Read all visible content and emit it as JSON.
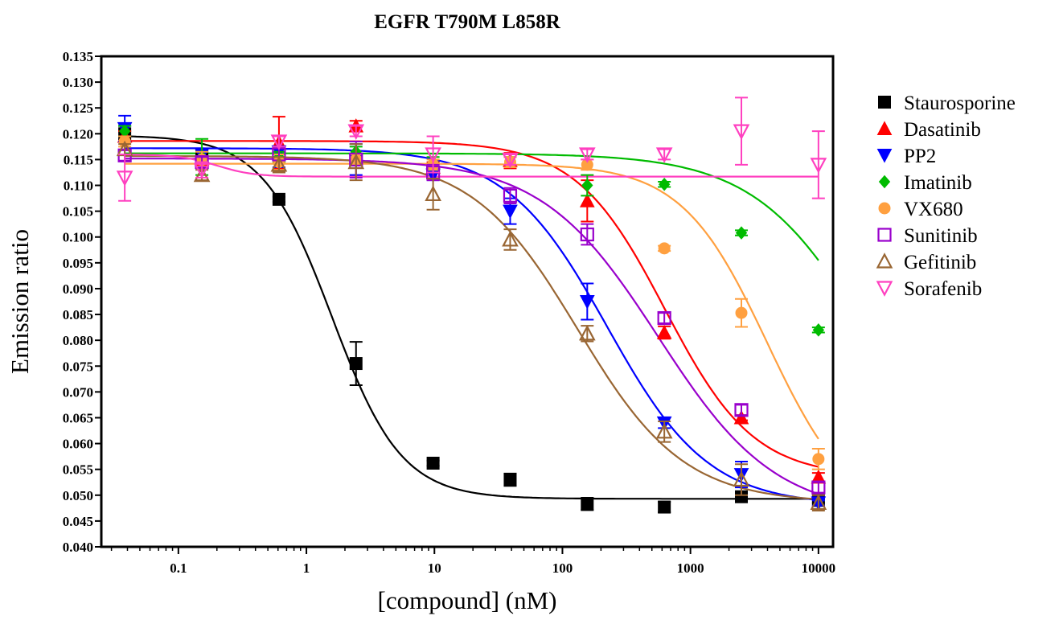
{
  "chart_data": {
    "type": "scatter",
    "title": "EGFR T790M L858R",
    "xlabel": "[compound] (nM)",
    "ylabel": "Emission ratio",
    "x_scale": "log",
    "xlim": [
      0.025,
      13000
    ],
    "ylim": [
      0.04,
      0.135
    ],
    "x_ticks": [
      {
        "value": 0.1,
        "label": "0.1"
      },
      {
        "value": 1,
        "label": "1"
      },
      {
        "value": 10,
        "label": "10"
      },
      {
        "value": 100,
        "label": "100"
      },
      {
        "value": 1000,
        "label": "1000"
      },
      {
        "value": 10000,
        "label": "10000"
      }
    ],
    "y_ticks": [
      {
        "value": 0.04,
        "label": "0.040"
      },
      {
        "value": 0.045,
        "label": "0.045"
      },
      {
        "value": 0.05,
        "label": "0.050"
      },
      {
        "value": 0.055,
        "label": "0.055"
      },
      {
        "value": 0.06,
        "label": "0.060"
      },
      {
        "value": 0.065,
        "label": "0.065"
      },
      {
        "value": 0.07,
        "label": "0.070"
      },
      {
        "value": 0.075,
        "label": "0.075"
      },
      {
        "value": 0.08,
        "label": "0.080"
      },
      {
        "value": 0.085,
        "label": "0.085"
      },
      {
        "value": 0.09,
        "label": "0.090"
      },
      {
        "value": 0.095,
        "label": "0.095"
      },
      {
        "value": 0.1,
        "label": "0.100"
      },
      {
        "value": 0.105,
        "label": "0.105"
      },
      {
        "value": 0.11,
        "label": "0.110"
      },
      {
        "value": 0.115,
        "label": "0.115"
      },
      {
        "value": 0.12,
        "label": "0.120"
      },
      {
        "value": 0.125,
        "label": "0.125"
      },
      {
        "value": 0.13,
        "label": "0.130"
      },
      {
        "value": 0.135,
        "label": "0.135"
      }
    ],
    "grid": false,
    "legend_position": "right",
    "x": [
      0.0381,
      0.1526,
      0.6104,
      2.4414,
      9.7656,
      39.0625,
      156.25,
      625,
      2500,
      10000
    ],
    "series": [
      {
        "name": "Staurosporine",
        "color": "#000000",
        "marker": "square-filled",
        "y": [
          0.12,
          0.116,
          0.1073,
          0.0755,
          0.0562,
          0.053,
          0.0483,
          0.0477,
          0.0497,
          0.049
        ],
        "err": [
          0.0015,
          0.001,
          0.0005,
          0.0042,
          0.0005,
          0.0012,
          0.0012,
          0.001,
          0.0005,
          0.0005
        ],
        "fit": {
          "bottom": 0.0493,
          "top": 0.1197,
          "logEC50": 0.2,
          "hill": 1.6
        }
      },
      {
        "name": "Dasatinib",
        "color": "#ff0000",
        "marker": "triangle-up-filled",
        "y": [
          0.1195,
          0.115,
          0.1183,
          0.1215,
          0.1135,
          0.1148,
          0.107,
          0.0815,
          0.065,
          0.0535
        ],
        "err": [
          0.001,
          0.0015,
          0.005,
          0.001,
          0.001,
          0.0015,
          0.004,
          0.0012,
          0.0005,
          0.0008
        ],
        "fit": {
          "bottom": 0.0535,
          "top": 0.1186,
          "logEC50": 2.8,
          "hill": 1.25
        }
      },
      {
        "name": "PP2",
        "color": "#0000ff",
        "marker": "triangle-down-filled",
        "y": [
          0.121,
          0.116,
          0.1165,
          0.115,
          0.112,
          0.105,
          0.0875,
          0.064,
          0.054,
          0.0485
        ],
        "err": [
          0.0025,
          0.001,
          0.003,
          0.003,
          0.001,
          0.0025,
          0.0035,
          0.001,
          0.0025,
          0.0005
        ],
        "fit": {
          "bottom": 0.048,
          "top": 0.1172,
          "logEC50": 2.35,
          "hill": 1.1
        }
      },
      {
        "name": "Imatinib",
        "color": "#00bb00",
        "marker": "diamond-filled",
        "y": [
          0.1205,
          0.1155,
          0.1155,
          0.1165,
          0.1145,
          0.1145,
          0.11,
          0.1102,
          0.1008,
          0.082
        ],
        "err": [
          0.001,
          0.0035,
          0.001,
          0.001,
          0.001,
          0.001,
          0.002,
          0.0005,
          0.0005,
          0.0005
        ],
        "fit": {
          "bottom": 0.04,
          "top": 0.1162,
          "logEC50": 4.45,
          "hill": 0.95
        }
      },
      {
        "name": "VX680",
        "color": "#ffa040",
        "marker": "circle-filled",
        "y": [
          0.1185,
          0.115,
          0.1145,
          0.115,
          0.114,
          0.1145,
          0.114,
          0.0978,
          0.0853,
          0.057
        ],
        "err": [
          0.001,
          0.0015,
          0.0015,
          0.001,
          0.001,
          0.001,
          0.001,
          0.0005,
          0.0027,
          0.002
        ],
        "fit": {
          "bottom": 0.0448,
          "top": 0.1142,
          "logEC50": 3.6,
          "hill": 1.3
        }
      },
      {
        "name": "Sunitinib",
        "color": "#9900cc",
        "marker": "square-open",
        "y": [
          0.1158,
          0.1145,
          0.116,
          0.115,
          0.1125,
          0.108,
          0.1005,
          0.0843,
          0.0665,
          0.0515
        ],
        "err": [
          0.001,
          0.001,
          0.0035,
          0.0035,
          0.0015,
          0.0015,
          0.002,
          0.001,
          0.001,
          0.001
        ],
        "fit": {
          "bottom": 0.046,
          "top": 0.1152,
          "logEC50": 2.75,
          "hill": 0.95
        }
      },
      {
        "name": "Gefitinib",
        "color": "#996633",
        "marker": "triangle-up-open",
        "y": [
          0.117,
          0.112,
          0.114,
          0.1145,
          0.1083,
          0.0995,
          0.0813,
          0.0623,
          0.053,
          0.0485
        ],
        "err": [
          0.001,
          0.001,
          0.0015,
          0.0035,
          0.003,
          0.002,
          0.0015,
          0.002,
          0.003,
          0.0015
        ],
        "fit": {
          "bottom": 0.0485,
          "top": 0.1157,
          "logEC50": 2.12,
          "hill": 1.05
        }
      },
      {
        "name": "Sorafenib",
        "color": "#ff40c0",
        "marker": "triangle-down-open",
        "y": [
          0.1115,
          0.113,
          0.1185,
          0.1205,
          0.116,
          0.115,
          0.116,
          0.116,
          0.1205,
          0.114
        ],
        "err": [
          0.0045,
          0.0015,
          0.001,
          0.001,
          0.0035,
          0.001,
          0.001,
          0.001,
          0.0065,
          0.0065
        ],
        "fit": {
          "bottom": 0.1117,
          "top": 0.116,
          "logEC50": -0.7,
          "hill": 3.0
        }
      }
    ]
  }
}
